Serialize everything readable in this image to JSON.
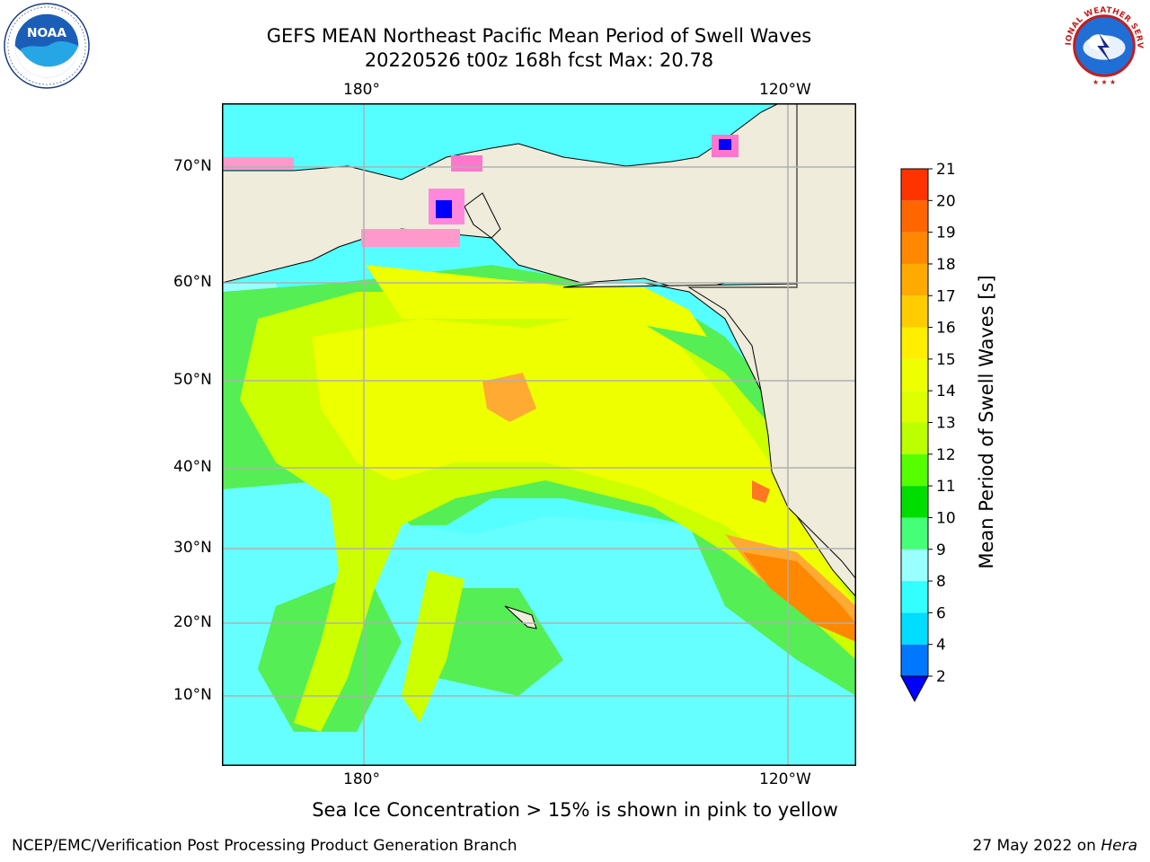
{
  "title_line1": "GEFS MEAN Northeast Pacific Mean Period of Swell Waves",
  "title_line2": "20220526 t00z 168h fcst   Max: 20.78",
  "logos": {
    "left": {
      "name": "noaa-logo",
      "text": "NOAA",
      "ring_text": "NATIONAL OCEANIC AND ATMOSPHERIC ADMINISTRATION · U.S. DEPARTMENT OF COMMERCE"
    },
    "right": {
      "name": "nws-logo",
      "ring_text": "NATIONAL WEATHER SERVICE"
    }
  },
  "map": {
    "lon_labels_top": [
      "180°",
      "120°W"
    ],
    "lon_labels_bottom": [
      "180°",
      "120°W"
    ],
    "lat_labels": [
      "70°N",
      "60°N",
      "50°N",
      "40°N",
      "30°N",
      "20°N",
      "10°N"
    ],
    "land_color": "#efecdc",
    "grid_color": "#b0b0b0"
  },
  "colorbar": {
    "label": "Mean Period of Swell Waves [s]",
    "ticks": [
      "2",
      "4",
      "6",
      "8",
      "9",
      "10",
      "11",
      "12",
      "13",
      "14",
      "15",
      "16",
      "17",
      "18",
      "19",
      "20",
      "21"
    ],
    "colors": [
      "#0077ff",
      "#00ddff",
      "#33ffff",
      "#99ffff",
      "#44ff77",
      "#00dd00",
      "#55ff00",
      "#bbff00",
      "#ddff00",
      "#eeff00",
      "#ffee00",
      "#ffcc00",
      "#ffaa00",
      "#ff8800",
      "#ff6600",
      "#ff3300"
    ],
    "extend_color": "#0000ff"
  },
  "footnote": "Sea Ice Concentration > 15% is shown in pink to yellow",
  "footer_left": "NCEP/EMC/Verification Post Processing Product Generation Branch",
  "footer_right_date": "27 May 2022 on ",
  "footer_right_host": "Hera"
}
